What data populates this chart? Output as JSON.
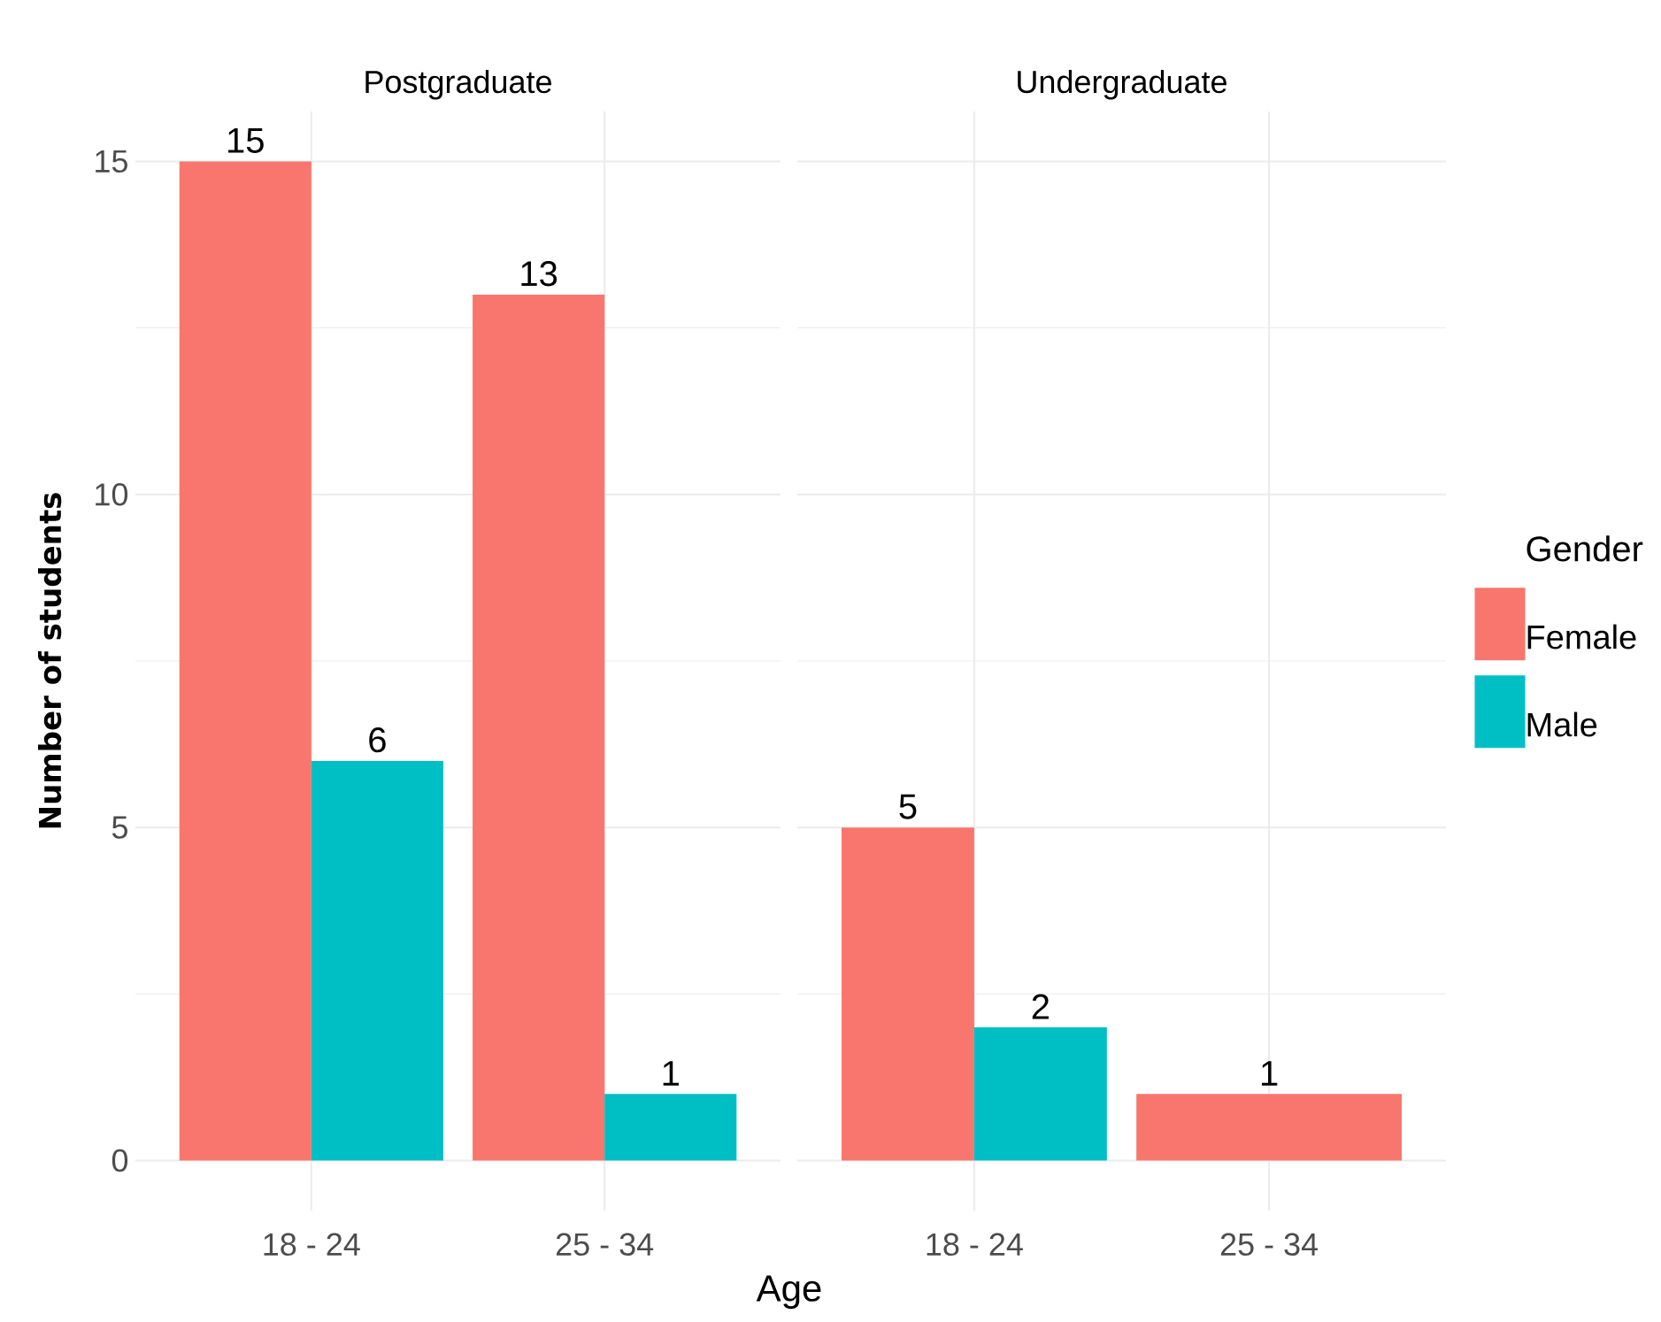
{
  "chart_data": [
    {
      "type": "bar",
      "title": "Postgraduate",
      "xlabel": "Age",
      "ylabel": "Number of students",
      "categories": [
        "18 - 24",
        "25 - 34"
      ],
      "series": [
        {
          "color": "#f8766d",
          "values": [
            15,
            13
          ],
          "value_labels": [
            "15",
            "13"
          ]
        },
        {
          "color": "#00bfc4",
          "values": [
            6,
            1
          ],
          "value_labels": [
            "6",
            "1"
          ]
        }
      ],
      "ylim": [
        -0.75,
        15.75
      ],
      "yticks": [
        0,
        5,
        10,
        15
      ],
      "grid": true
    },
    {
      "type": "bar",
      "title": "Undergraduate",
      "categories": [
        "18 - 24",
        "25 - 34"
      ],
      "series": [
        {
          "name": "Female",
          "color": "#f8766d",
          "values": [
            5,
            1
          ],
          "value_labels": [
            "5",
            "1"
          ]
        },
        {
          "name": "Male",
          "color": "#00bfc4",
          "values": [
            2,
            null
          ],
          "value_labels": [
            "2",
            null
          ]
        }
      ],
      "ylim": [
        -0.75,
        15.75
      ],
      "yticks": [
        0,
        5,
        10,
        15
      ],
      "grid": true,
      "tick_labels": "x",
      "legend": "right",
      "legend_title": "Gender"
    }
  ]
}
